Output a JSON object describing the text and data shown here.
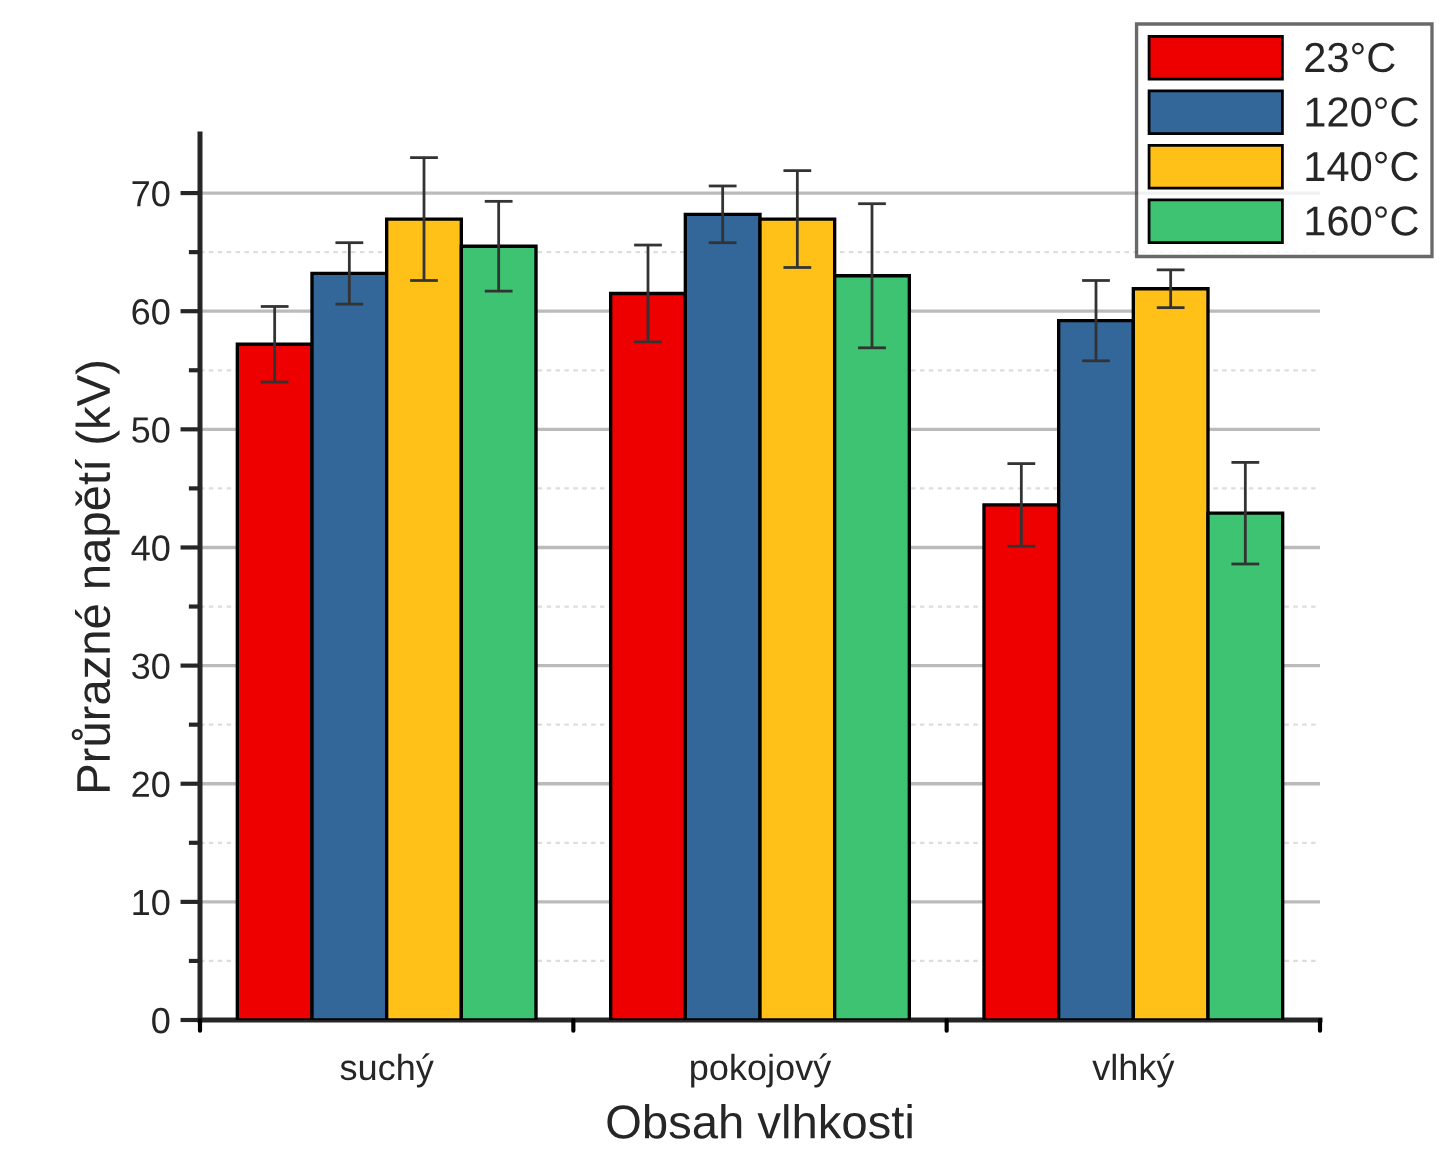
{
  "chart_data": {
    "type": "bar",
    "xlabel": "Obsah vlhkosti",
    "ylabel": "Průrazné napětí (kV)",
    "categories": [
      "suchý",
      "pokojový",
      "vlhký"
    ],
    "series": [
      {
        "name": "23°C",
        "color": "#ee0000",
        "values": [
          57.2,
          61.5,
          43.6
        ],
        "errors": [
          3.2,
          4.1,
          3.5
        ]
      },
      {
        "name": "120°C",
        "color": "#336699",
        "values": [
          63.2,
          68.2,
          59.2
        ],
        "errors": [
          2.6,
          2.4,
          3.4
        ]
      },
      {
        "name": "140°C",
        "color": "#ffc118",
        "values": [
          67.8,
          67.8,
          61.9
        ],
        "errors": [
          5.2,
          4.1,
          1.6
        ]
      },
      {
        "name": "160°C",
        "color": "#3dc371",
        "values": [
          65.5,
          63.0,
          42.9
        ],
        "errors": [
          3.8,
          6.1,
          4.3
        ]
      }
    ],
    "ylim": [
      0,
      75
    ],
    "yticks": [
      0,
      10,
      20,
      30,
      40,
      50,
      60,
      70
    ],
    "grid": "y",
    "legend": "top right"
  }
}
